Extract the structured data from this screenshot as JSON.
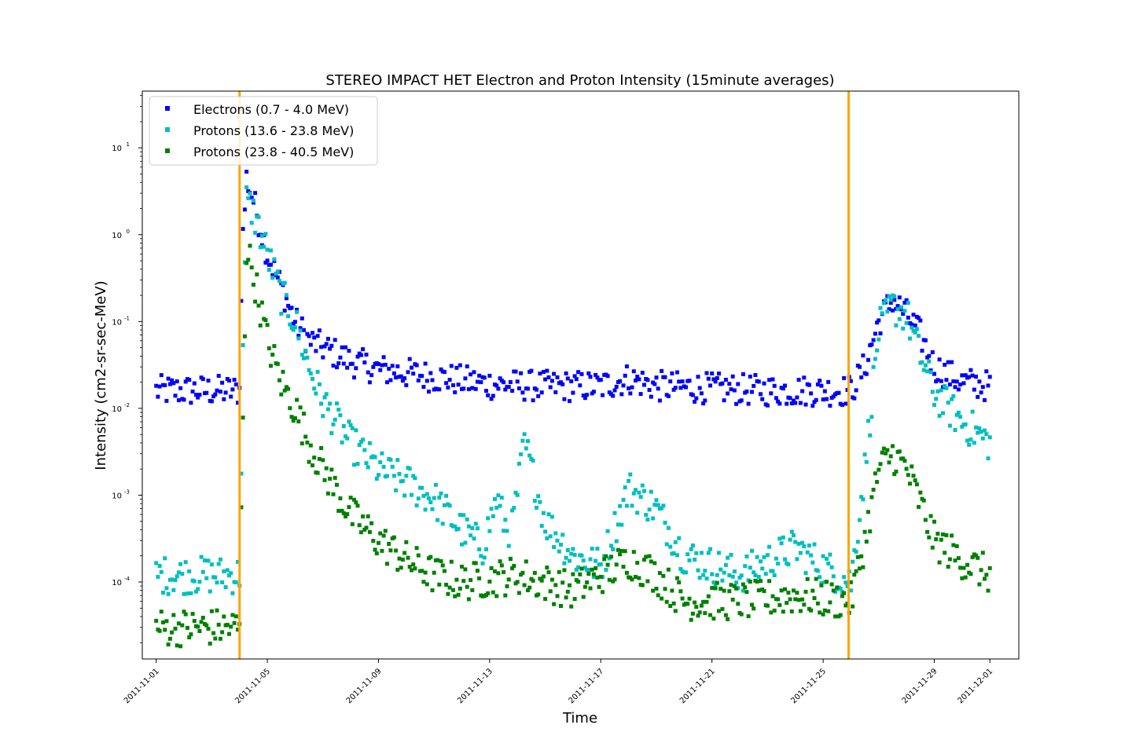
{
  "chart_data": {
    "type": "scatter",
    "title": "STEREO IMPACT HET Electron and Proton Intensity (15minute averages)",
    "xlabel": "Time",
    "ylabel": "Intensity (cm2-sr-sec-MeV)",
    "y_scale": "log",
    "ylim": [
      1.3e-05,
      45
    ],
    "xlim": [
      "2011-10-31T12:00",
      "2011-12-02T01:00"
    ],
    "legend_position": "top-left",
    "grid": false,
    "x_ticks": [
      "2011-11-01",
      "2011-11-05",
      "2011-11-09",
      "2011-11-13",
      "2011-11-17",
      "2011-11-21",
      "2011-11-25",
      "2011-11-29",
      "2011-12-01"
    ],
    "y_ticks": [
      {
        "value": 10,
        "base": "10",
        "exp": "1"
      },
      {
        "value": 1,
        "base": "10",
        "exp": "0"
      },
      {
        "value": 0.1,
        "base": "10",
        "exp": "-1"
      },
      {
        "value": 0.01,
        "base": "10",
        "exp": "-2"
      },
      {
        "value": 0.001,
        "base": "10",
        "exp": "-3"
      },
      {
        "value": 0.0001,
        "base": "10",
        "exp": "-4"
      }
    ],
    "vlines": [
      {
        "x": "2011-11-04T00:00",
        "color": "#ffa500"
      },
      {
        "x": "2011-11-25T22:00",
        "color": "#ffa500"
      }
    ],
    "series": [
      {
        "name": "Electrons (0.7 - 4.0 MeV)",
        "color": "#0000ff",
        "points": [
          [
            "2011-11-01T00:00",
            0.016
          ],
          [
            "2011-11-02T00:00",
            0.016
          ],
          [
            "2011-11-03T00:00",
            0.016
          ],
          [
            "2011-11-04T00:00",
            0.016
          ],
          [
            "2011-11-04T02:00",
            0.6
          ],
          [
            "2011-11-04T06:00",
            4.5
          ],
          [
            "2011-11-04T12:00",
            2.5
          ],
          [
            "2011-11-05T00:00",
            0.6
          ],
          [
            "2011-11-05T12:00",
            0.25
          ],
          [
            "2011-11-06T00:00",
            0.1
          ],
          [
            "2011-11-06T12:00",
            0.06
          ],
          [
            "2011-11-07T00:00",
            0.05
          ],
          [
            "2011-11-08T00:00",
            0.035
          ],
          [
            "2011-11-09T00:00",
            0.028
          ],
          [
            "2011-11-11T00:00",
            0.023
          ],
          [
            "2011-11-13T00:00",
            0.019
          ],
          [
            "2011-11-15T00:00",
            0.018
          ],
          [
            "2011-11-17T00:00",
            0.018
          ],
          [
            "2011-11-18T00:00",
            0.022
          ],
          [
            "2011-11-19T00:00",
            0.018
          ],
          [
            "2011-11-21T00:00",
            0.017
          ],
          [
            "2011-11-23T00:00",
            0.016
          ],
          [
            "2011-11-25T00:00",
            0.016
          ],
          [
            "2011-11-26T00:00",
            0.016
          ],
          [
            "2011-11-26T12:00",
            0.03
          ],
          [
            "2011-11-27T00:00",
            0.1
          ],
          [
            "2011-11-27T12:00",
            0.18
          ],
          [
            "2011-11-28T00:00",
            0.12
          ],
          [
            "2011-11-28T12:00",
            0.07
          ],
          [
            "2011-11-29T00:00",
            0.03
          ],
          [
            "2011-11-30T00:00",
            0.02
          ],
          [
            "2011-12-01T00:00",
            0.018
          ]
        ]
      },
      {
        "name": "Protons (13.6 - 23.8 MeV)",
        "color": "#00bfbf",
        "points": [
          [
            "2011-11-01T00:00",
            0.00012
          ],
          [
            "2011-11-02T00:00",
            0.00012
          ],
          [
            "2011-11-03T00:00",
            0.00012
          ],
          [
            "2011-11-04T00:00",
            0.00012
          ],
          [
            "2011-11-04T03:00",
            0.05
          ],
          [
            "2011-11-04T06:00",
            2.5
          ],
          [
            "2011-11-04T12:00",
            1.8
          ],
          [
            "2011-11-05T00:00",
            0.6
          ],
          [
            "2011-11-05T12:00",
            0.2
          ],
          [
            "2011-11-06T00:00",
            0.1
          ],
          [
            "2011-11-06T12:00",
            0.03
          ],
          [
            "2011-11-07T00:00",
            0.012
          ],
          [
            "2011-11-08T00:00",
            0.004
          ],
          [
            "2011-11-09T00:00",
            0.002
          ],
          [
            "2011-11-10T00:00",
            0.0014
          ],
          [
            "2011-11-11T00:00",
            0.0009
          ],
          [
            "2011-11-12T00:00",
            0.0004
          ],
          [
            "2011-11-12T18:00",
            0.00025
          ],
          [
            "2011-11-13T06:00",
            0.0009
          ],
          [
            "2011-11-13T18:00",
            0.0003
          ],
          [
            "2011-11-14T06:00",
            0.004
          ],
          [
            "2011-11-15T00:00",
            0.0005
          ],
          [
            "2011-11-16T00:00",
            0.0002
          ],
          [
            "2011-11-17T00:00",
            0.00015
          ],
          [
            "2011-11-18T00:00",
            0.0012
          ],
          [
            "2011-11-19T00:00",
            0.0007
          ],
          [
            "2011-11-20T00:00",
            0.0002
          ],
          [
            "2011-11-22T00:00",
            0.00012
          ],
          [
            "2011-11-24T00:00",
            0.00025
          ],
          [
            "2011-11-25T00:00",
            0.00015
          ],
          [
            "2011-11-26T00:00",
            0.0001
          ],
          [
            "2011-11-26T12:00",
            0.002
          ],
          [
            "2011-11-27T00:00",
            0.08
          ],
          [
            "2011-11-27T12:00",
            0.15
          ],
          [
            "2011-11-28T00:00",
            0.12
          ],
          [
            "2011-11-28T12:00",
            0.04
          ],
          [
            "2011-11-29T00:00",
            0.015
          ],
          [
            "2011-11-30T00:00",
            0.007
          ],
          [
            "2011-12-01T00:00",
            0.004
          ]
        ]
      },
      {
        "name": "Protons (23.8 - 40.5 MeV)",
        "color": "#008000",
        "points": [
          [
            "2011-11-01T00:00",
            3e-05
          ],
          [
            "2011-11-02T00:00",
            3e-05
          ],
          [
            "2011-11-03T00:00",
            3e-05
          ],
          [
            "2011-11-04T00:00",
            3e-05
          ],
          [
            "2011-11-04T03:00",
            0.01
          ],
          [
            "2011-11-04T06:00",
            0.7
          ],
          [
            "2011-11-04T12:00",
            0.35
          ],
          [
            "2011-11-05T00:00",
            0.06
          ],
          [
            "2011-11-05T12:00",
            0.02
          ],
          [
            "2011-11-06T00:00",
            0.01
          ],
          [
            "2011-11-06T12:00",
            0.004
          ],
          [
            "2011-11-07T00:00",
            0.002
          ],
          [
            "2011-11-08T00:00",
            0.0006
          ],
          [
            "2011-11-09T00:00",
            0.0003
          ],
          [
            "2011-11-10T00:00",
            0.00018
          ],
          [
            "2011-11-11T00:00",
            0.00012
          ],
          [
            "2011-11-12T00:00",
            0.0001
          ],
          [
            "2011-11-14T00:00",
            0.00012
          ],
          [
            "2011-11-16T00:00",
            8e-05
          ],
          [
            "2011-11-18T00:00",
            0.00018
          ],
          [
            "2011-11-19T00:00",
            0.00012
          ],
          [
            "2011-11-20T00:00",
            6e-05
          ],
          [
            "2011-11-22T00:00",
            6e-05
          ],
          [
            "2011-11-24T00:00",
            7e-05
          ],
          [
            "2011-11-26T00:00",
            6e-05
          ],
          [
            "2011-11-26T12:00",
            0.0003
          ],
          [
            "2011-11-27T00:00",
            0.002
          ],
          [
            "2011-11-27T12:00",
            0.003
          ],
          [
            "2011-11-28T00:00",
            0.002
          ],
          [
            "2011-11-28T12:00",
            0.0008
          ],
          [
            "2011-11-29T00:00",
            0.0003
          ],
          [
            "2011-11-30T00:00",
            0.00018
          ],
          [
            "2011-12-01T00:00",
            0.00012
          ]
        ]
      }
    ]
  }
}
